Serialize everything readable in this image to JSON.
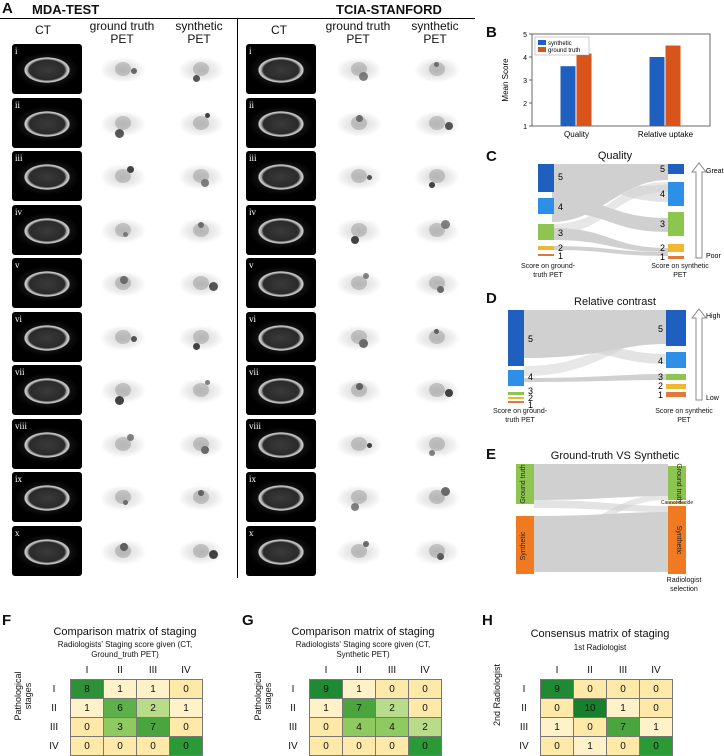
{
  "panels": {
    "A": "A",
    "B": "B",
    "C": "C",
    "D": "D",
    "E": "E",
    "F": "F",
    "G": "G",
    "H": "H"
  },
  "panelA": {
    "groups": [
      "MDA-TEST",
      "TCIA-STANFORD"
    ],
    "columns": [
      "CT",
      "ground truth PET",
      "synthetic PET",
      "CT",
      "ground truth PET",
      "synthetic PET"
    ],
    "rows": [
      "i",
      "ii",
      "iii",
      "iv",
      "v",
      "vi",
      "vii",
      "viii",
      "ix",
      "x"
    ]
  },
  "panelB": {
    "chart_data": {
      "type": "bar",
      "categories": [
        "Quality",
        "Relative uptake"
      ],
      "series": [
        {
          "name": "synthetic",
          "values": [
            3.6,
            4.0
          ]
        },
        {
          "name": "ground truth",
          "values": [
            4.15,
            4.5
          ]
        }
      ],
      "ylabel": "Mean Score",
      "ylim": [
        1,
        5
      ],
      "yticks": [
        "1",
        "2",
        "3",
        "4",
        "5"
      ],
      "colors": {
        "synthetic": "#1f5fbf",
        "ground truth": "#d9541a"
      },
      "legend": "top-left"
    }
  },
  "panelC": {
    "title": "Quality",
    "left_levels": [
      "5",
      "4",
      "3",
      "2",
      "1"
    ],
    "right_levels": [
      "5",
      "4",
      "3",
      "2",
      "1"
    ],
    "left_caption": "Score on ground-truth PET",
    "right_caption": "Score on synthetic PET",
    "arrow_top": "Great",
    "arrow_bottom": "Poor"
  },
  "panelD": {
    "title": "Relative contrast",
    "left_levels": [
      "5",
      "4",
      "3",
      "2",
      "1"
    ],
    "right_levels": [
      "5",
      "4",
      "3",
      "2",
      "1"
    ],
    "left_caption": "Score on ground-truth PET",
    "right_caption": "Score on synthetic PET",
    "arrow_top": "High",
    "arrow_bottom": "Low"
  },
  "panelE": {
    "title": "Ground-truth VS Synthetic",
    "left": [
      "Ground truth",
      "Synthetic"
    ],
    "right": [
      "Ground truth",
      "Cannot decide",
      "Synthetic"
    ],
    "right_caption": "Radiologist selection"
  },
  "panelF": {
    "title": "Comparison matrix of staging",
    "subtitle": "Radiologists' Staging score given (CT, Ground_truth PET)",
    "row_label": "Pathological stages",
    "headers": [
      "I",
      "II",
      "III",
      "IV"
    ],
    "rows": [
      {
        "label": "I",
        "values": [
          "8",
          "1",
          "1",
          "0"
        ]
      },
      {
        "label": "II",
        "values": [
          "1",
          "6",
          "2",
          "1"
        ]
      },
      {
        "label": "III",
        "values": [
          "0",
          "3",
          "7",
          "0"
        ]
      },
      {
        "label": "IV",
        "values": [
          "0",
          "0",
          "0",
          "0"
        ]
      }
    ]
  },
  "panelG": {
    "title": "Comparison matrix of staging",
    "subtitle": "Radiologists' Staging score given (CT, Synthetic PET)",
    "row_label": "Pathological stages",
    "headers": [
      "I",
      "II",
      "III",
      "IV"
    ],
    "rows": [
      {
        "label": "I",
        "values": [
          "9",
          "1",
          "0",
          "0"
        ]
      },
      {
        "label": "II",
        "values": [
          "1",
          "7",
          "2",
          "0"
        ]
      },
      {
        "label": "III",
        "values": [
          "0",
          "4",
          "4",
          "2"
        ]
      },
      {
        "label": "IV",
        "values": [
          "0",
          "0",
          "0",
          "0"
        ]
      }
    ]
  },
  "panelH": {
    "title": "Consensus matrix of staging",
    "subtitle": "1st Radiologist",
    "row_label": "2nd Radiologist",
    "headers": [
      "I",
      "II",
      "III",
      "IV"
    ],
    "rows": [
      {
        "label": "I",
        "values": [
          "9",
          "0",
          "0",
          "0"
        ]
      },
      {
        "label": "II",
        "values": [
          "0",
          "10",
          "1",
          "0"
        ]
      },
      {
        "label": "III",
        "values": [
          "1",
          "0",
          "7",
          "1"
        ]
      },
      {
        "label": "IV",
        "values": [
          "0",
          "1",
          "0",
          "0"
        ]
      }
    ]
  }
}
